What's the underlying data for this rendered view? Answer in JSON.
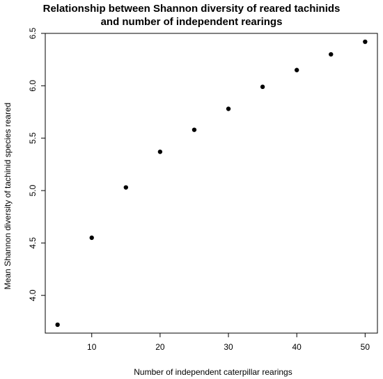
{
  "chart_data": {
    "type": "scatter",
    "title": [
      "Relationship between Shannon diversity of reared tachinids",
      "and number of independent rearings"
    ],
    "xlabel": "Number of independent caterpillar rearings",
    "ylabel": "Mean Shannon diversity of tachinid species reared",
    "x": [
      5,
      10,
      15,
      20,
      25,
      30,
      35,
      40,
      45,
      50
    ],
    "y": [
      3.72,
      4.55,
      5.03,
      5.37,
      5.58,
      5.78,
      5.99,
      6.15,
      6.3,
      6.42
    ],
    "xlim": [
      3.2,
      51.8
    ],
    "ylim": [
      3.64,
      6.5
    ],
    "xticks": [
      10,
      20,
      30,
      40,
      50
    ],
    "yticks": [
      4.0,
      4.5,
      5.0,
      5.5,
      6.0,
      6.5
    ],
    "ytick_labels": [
      "4.0",
      "4.5",
      "5.0",
      "5.5",
      "6.0",
      "6.5"
    ],
    "grid": false,
    "point_color": "#000000"
  }
}
